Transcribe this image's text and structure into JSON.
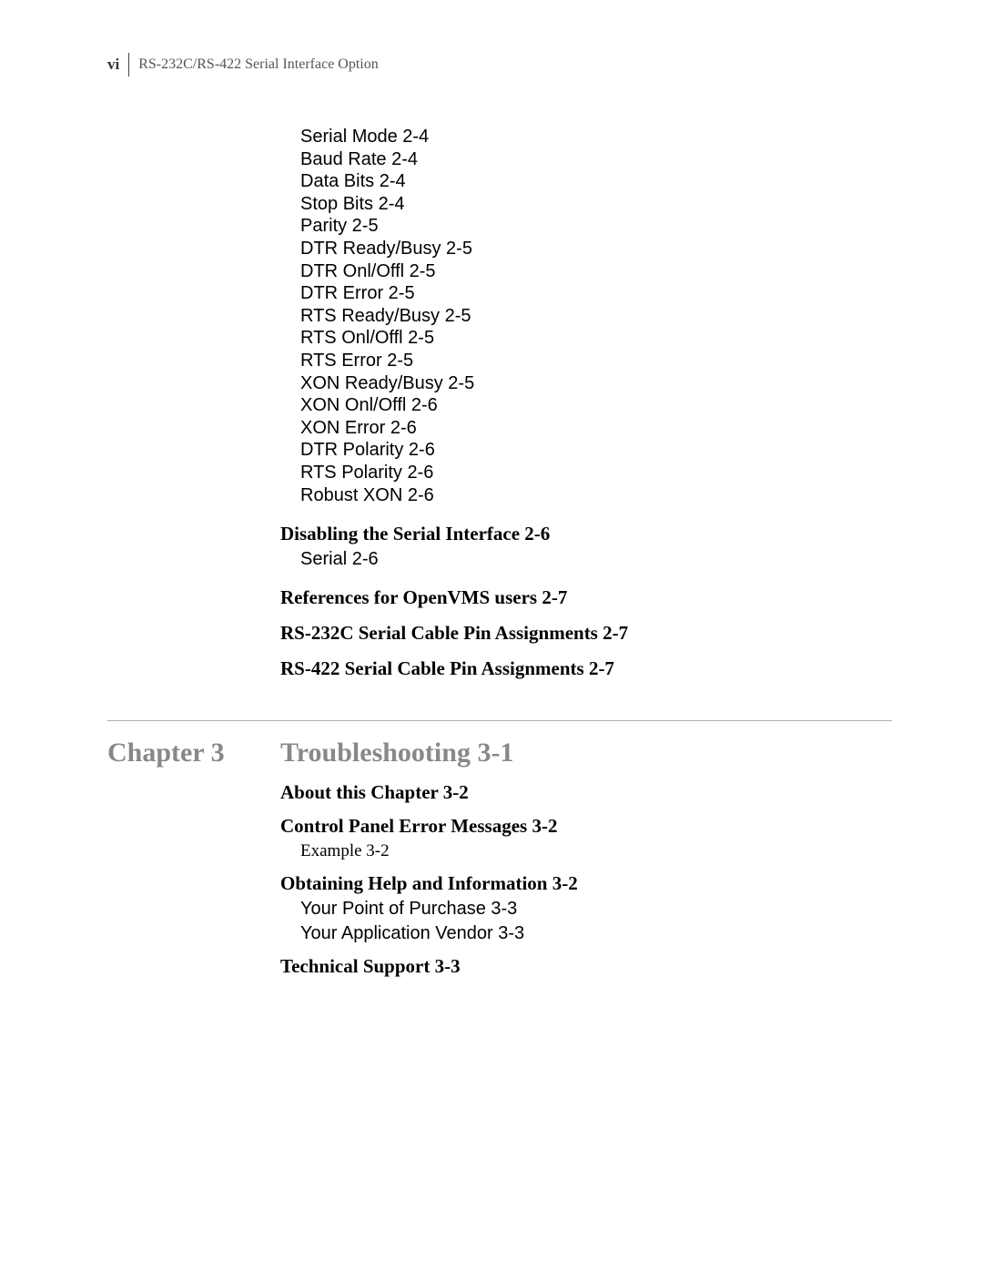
{
  "header": {
    "page_number": "vi",
    "doc_title": "RS-232C/RS-422 Serial Interface Option"
  },
  "top_items": [
    "Serial Mode 2-4",
    "Baud Rate 2-4",
    "Data Bits 2-4",
    "Stop Bits 2-4",
    "Parity 2-5",
    "DTR Ready/Busy 2-5",
    "DTR Onl/Offl 2-5",
    "DTR Error 2-5",
    "RTS Ready/Busy 2-5",
    "RTS Onl/Offl 2-5",
    "RTS Error 2-5",
    "XON Ready/Busy 2-5",
    "XON Onl/Offl 2-6",
    "XON Error 2-6",
    "DTR Polarity 2-6",
    "RTS Polarity 2-6",
    "Robust XON 2-6"
  ],
  "sections": {
    "disabling": {
      "title": "Disabling the Serial Interface 2-6",
      "sub": "Serial 2-6"
    },
    "references": {
      "title": "References for OpenVMS users 2-7"
    },
    "rs232c": {
      "title": "RS-232C Serial Cable Pin Assignments 2-7"
    },
    "rs422": {
      "title": "RS-422 Serial Cable Pin Assignments 2-7"
    }
  },
  "chapter": {
    "label": "Chapter 3",
    "title": "Troubleshooting 3-1",
    "about": {
      "title": "About this Chapter 3-2"
    },
    "control_panel": {
      "title": "Control Panel Error Messages 3-2",
      "sub": "Example 3-2"
    },
    "obtaining": {
      "title": "Obtaining Help and Information 3-2",
      "sub1": "Your Point of Purchase 3-3",
      "sub2": "Your Application Vendor 3-3"
    },
    "tech_support": {
      "title": "Technical Support 3-3"
    }
  },
  "colors": {
    "text": "#000000",
    "muted": "#888888",
    "rule": "#b0b0b0",
    "header_text": "#555555",
    "background": "#ffffff"
  },
  "fonts": {
    "serif": "Times New Roman",
    "sans": "Arial",
    "body_size_pt": 15,
    "heading_size_pt": 22
  }
}
